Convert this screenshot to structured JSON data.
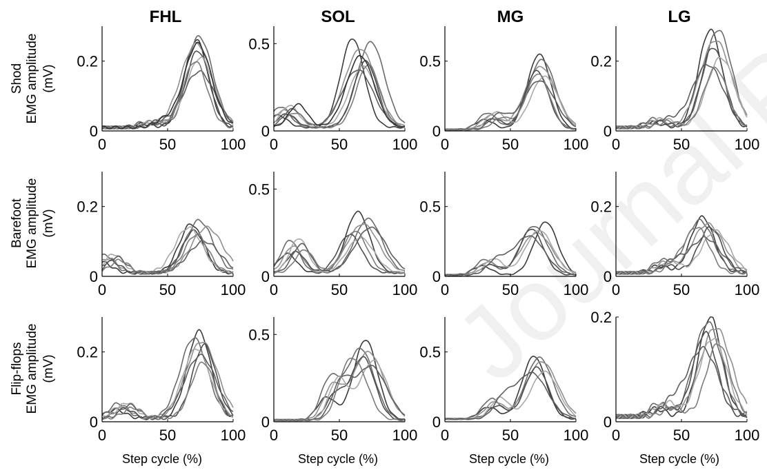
{
  "figure": {
    "columns": [
      "FHL",
      "SOL",
      "MG",
      "LG"
    ],
    "rows": [
      {
        "label_line1": "Shod",
        "label_line2": "EMG amplitude",
        "label_line3": "(mV)"
      },
      {
        "label_line1": "Barefoot",
        "label_line2": "EMG amplitude",
        "label_line3": "(mV)"
      },
      {
        "label_line1": "Flip-flops",
        "label_line2": "EMG amplitude",
        "label_line3": "(mV)"
      }
    ],
    "xlabel": "Step cycle (%)",
    "watermark": "Journal Pre-proofs",
    "line_color": "#555555"
  },
  "chart_data": [
    {
      "type": "line",
      "row": "Shod",
      "column": "FHL",
      "xlim": [
        0,
        100
      ],
      "ylim": [
        0,
        0.3
      ],
      "xticks": [
        0,
        50,
        100
      ],
      "yticks": [
        0,
        0.2
      ],
      "peaks": [
        [
          72,
          0.25
        ],
        [
          74,
          0.26
        ],
        [
          72,
          0.24
        ],
        [
          73,
          0.22
        ],
        [
          75,
          0.2
        ],
        [
          74,
          0.16
        ],
        [
          71,
          0.19
        ],
        [
          73,
          0.24
        ]
      ],
      "baseline": 0.01,
      "hump": 0.02,
      "hump_x": 40
    },
    {
      "type": "line",
      "row": "Shod",
      "column": "SOL",
      "xlim": [
        0,
        100
      ],
      "ylim": [
        0,
        0.6
      ],
      "xticks": [
        0,
        50,
        100
      ],
      "yticks": [
        0,
        0.5
      ],
      "peaks": [
        [
          60,
          0.51
        ],
        [
          74,
          0.49
        ],
        [
          66,
          0.45
        ],
        [
          70,
          0.38
        ],
        [
          68,
          0.35
        ],
        [
          64,
          0.33
        ],
        [
          72,
          0.36
        ],
        [
          66,
          0.41
        ]
      ],
      "baseline": 0.02,
      "hump": 0.14,
      "hump_x": 12
    },
    {
      "type": "line",
      "row": "Shod",
      "column": "MG",
      "xlim": [
        0,
        100
      ],
      "ylim": [
        0,
        0.75
      ],
      "xticks": [
        0,
        50,
        100
      ],
      "yticks": [
        0,
        0.5
      ],
      "peaks": [
        [
          72,
          0.54
        ],
        [
          74,
          0.5
        ],
        [
          73,
          0.45
        ],
        [
          70,
          0.42
        ],
        [
          76,
          0.38
        ],
        [
          72,
          0.35
        ],
        [
          71,
          0.4
        ]
      ],
      "baseline": 0.01,
      "hump": 0.14,
      "hump_x": 38
    },
    {
      "type": "line",
      "row": "Shod",
      "column": "LG",
      "xlim": [
        0,
        100
      ],
      "ylim": [
        0,
        0.3
      ],
      "xticks": [
        0,
        50,
        100
      ],
      "yticks": [
        0,
        0.2
      ],
      "peaks": [
        [
          72,
          0.28
        ],
        [
          78,
          0.28
        ],
        [
          76,
          0.25
        ],
        [
          74,
          0.23
        ],
        [
          80,
          0.2
        ],
        [
          70,
          0.18
        ],
        [
          76,
          0.17
        ]
      ],
      "baseline": 0.01,
      "hump": 0.03,
      "hump_x": 35
    },
    {
      "type": "line",
      "row": "Barefoot",
      "column": "FHL",
      "xlim": [
        0,
        100
      ],
      "ylim": [
        0,
        0.3
      ],
      "xticks": [
        0,
        50,
        100
      ],
      "yticks": [
        0,
        0.2
      ],
      "peaks": [
        [
          68,
          0.14
        ],
        [
          74,
          0.15
        ],
        [
          80,
          0.13
        ],
        [
          70,
          0.12
        ],
        [
          66,
          0.13
        ],
        [
          78,
          0.09
        ],
        [
          72,
          0.11
        ]
      ],
      "baseline": 0.01,
      "hump": 0.06,
      "hump_x": 8
    },
    {
      "type": "line",
      "row": "Barefoot",
      "column": "SOL",
      "xlim": [
        0,
        100
      ],
      "ylim": [
        0,
        0.6
      ],
      "xticks": [
        0,
        50,
        100
      ],
      "yticks": [
        0,
        0.5
      ],
      "peaks": [
        [
          64,
          0.35
        ],
        [
          72,
          0.31
        ],
        [
          68,
          0.28
        ],
        [
          58,
          0.22
        ],
        [
          66,
          0.2
        ],
        [
          74,
          0.26
        ],
        [
          62,
          0.24
        ]
      ],
      "baseline": 0.02,
      "hump": 0.22,
      "hump_x": 18
    },
    {
      "type": "line",
      "row": "Barefoot",
      "column": "MG",
      "xlim": [
        0,
        100
      ],
      "ylim": [
        0,
        0.75
      ],
      "xticks": [
        0,
        50,
        100
      ],
      "yticks": [
        0,
        0.5
      ],
      "peaks": [
        [
          77,
          0.38
        ],
        [
          68,
          0.35
        ],
        [
          70,
          0.3
        ],
        [
          66,
          0.33
        ],
        [
          72,
          0.32
        ],
        [
          64,
          0.28
        ]
      ],
      "baseline": 0.01,
      "hump": 0.13,
      "hump_x": 35
    },
    {
      "type": "line",
      "row": "Barefoot",
      "column": "LG",
      "xlim": [
        0,
        100
      ],
      "ylim": [
        0,
        0.3
      ],
      "xticks": [
        0,
        50,
        100
      ],
      "yticks": [
        0,
        0.2
      ],
      "peaks": [
        [
          66,
          0.16
        ],
        [
          64,
          0.15
        ],
        [
          70,
          0.14
        ],
        [
          72,
          0.13
        ],
        [
          76,
          0.12
        ],
        [
          68,
          0.1
        ],
        [
          62,
          0.13
        ]
      ],
      "baseline": 0.01,
      "hump": 0.04,
      "hump_x": 40
    },
    {
      "type": "line",
      "row": "Flip-flops",
      "column": "FHL",
      "xlim": [
        0,
        100
      ],
      "ylim": [
        0,
        0.3
      ],
      "xticks": [
        0,
        50,
        100
      ],
      "yticks": [
        0,
        0.2
      ],
      "peaks": [
        [
          74,
          0.25
        ],
        [
          70,
          0.23
        ],
        [
          76,
          0.22
        ],
        [
          78,
          0.21
        ],
        [
          72,
          0.2
        ],
        [
          75,
          0.18
        ],
        [
          77,
          0.16
        ]
      ],
      "baseline": 0.01,
      "hump": 0.05,
      "hump_x": 18
    },
    {
      "type": "line",
      "row": "Flip-flops",
      "column": "SOL",
      "xlim": [
        0,
        100
      ],
      "ylim": [
        0,
        0.6
      ],
      "xticks": [
        0,
        50,
        100
      ],
      "yticks": [
        0,
        0.5
      ],
      "peaks": [
        [
          70,
          0.46
        ],
        [
          66,
          0.41
        ],
        [
          72,
          0.39
        ],
        [
          68,
          0.36
        ],
        [
          76,
          0.34
        ],
        [
          74,
          0.31
        ],
        [
          64,
          0.28
        ]
      ],
      "baseline": 0.01,
      "hump": 0.26,
      "hump_x": 48
    },
    {
      "type": "line",
      "row": "Flip-flops",
      "column": "MG",
      "xlim": [
        0,
        100
      ],
      "ylim": [
        0,
        0.75
      ],
      "xticks": [
        0,
        50,
        100
      ],
      "yticks": [
        0,
        0.5
      ],
      "peaks": [
        [
          68,
          0.45
        ],
        [
          72,
          0.44
        ],
        [
          74,
          0.41
        ],
        [
          70,
          0.37
        ],
        [
          76,
          0.34
        ],
        [
          66,
          0.33
        ]
      ],
      "baseline": 0.02,
      "hump": 0.17,
      "hump_x": 40
    },
    {
      "type": "line",
      "row": "Flip-flops",
      "column": "LG",
      "xlim": [
        0,
        100
      ],
      "ylim": [
        0,
        0.2
      ],
      "xticks": [
        0,
        50,
        100
      ],
      "yticks": [
        0,
        0.2
      ],
      "peaks": [
        [
          72,
          0.19
        ],
        [
          70,
          0.18
        ],
        [
          76,
          0.17
        ],
        [
          68,
          0.16
        ],
        [
          74,
          0.15
        ],
        [
          66,
          0.13
        ],
        [
          78,
          0.14
        ]
      ],
      "baseline": 0.01,
      "hump": 0.03,
      "hump_x": 38
    }
  ]
}
